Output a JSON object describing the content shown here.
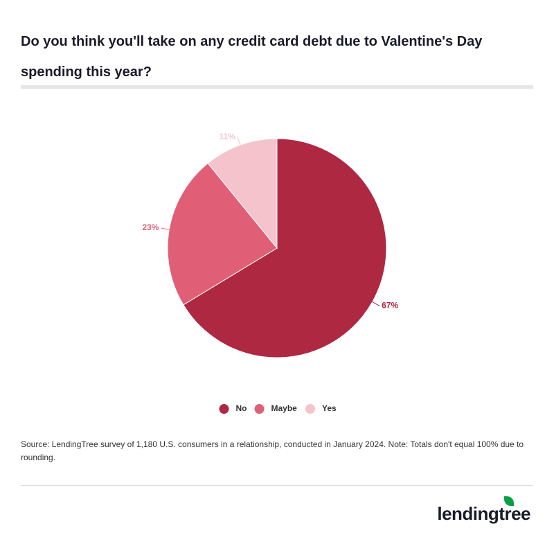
{
  "chart_data": {
    "type": "pie",
    "title": "Do you think you'll take on any credit card debt due to Valentine's Day spending this year?",
    "categories": [
      "No",
      "Maybe",
      "Yes"
    ],
    "values": [
      67,
      23,
      11
    ],
    "value_labels": [
      "67%",
      "23%",
      "11%"
    ],
    "colors": [
      "#ae2841",
      "#e05f76",
      "#f5c3cc"
    ],
    "legend": "bottom",
    "source": "Source: LendingTree survey of 1,180 U.S. consumers in a relationship, conducted in January 2024. Note: Totals don't equal 100% due to rounding.",
    "logo": "lendingtree"
  }
}
